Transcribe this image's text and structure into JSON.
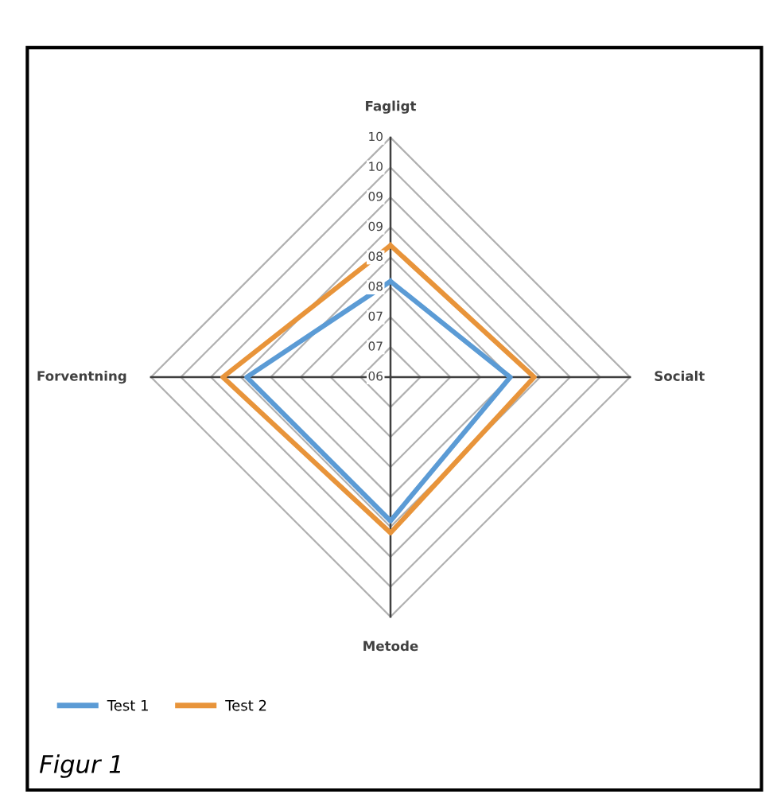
{
  "chart_data": {
    "type": "radar",
    "categories": [
      "Fagligt",
      "Socialt",
      "Metode",
      "Forventning"
    ],
    "series": [
      {
        "name": "Test 1",
        "color": "#5b9bd5",
        "values": [
          7.6,
          8.0,
          8.4,
          8.4
        ]
      },
      {
        "name": "Test 2",
        "color": "#e8943a",
        "values": [
          8.2,
          8.4,
          8.6,
          8.8
        ]
      }
    ],
    "ylim": [
      6,
      10
    ],
    "yticks": [
      {
        "value": 6,
        "label": "06"
      },
      {
        "value": 6.5,
        "label": "07"
      },
      {
        "value": 7,
        "label": "07"
      },
      {
        "value": 7.5,
        "label": "08"
      },
      {
        "value": 8,
        "label": "08"
      },
      {
        "value": 8.5,
        "label": "09"
      },
      {
        "value": 9,
        "label": "09"
      },
      {
        "value": 9.5,
        "label": "10"
      },
      {
        "value": 10,
        "label": "10"
      }
    ],
    "grid": true,
    "legend": "bottom left",
    "line_style": "solid",
    "annotations": [
      "Figur 1"
    ]
  }
}
